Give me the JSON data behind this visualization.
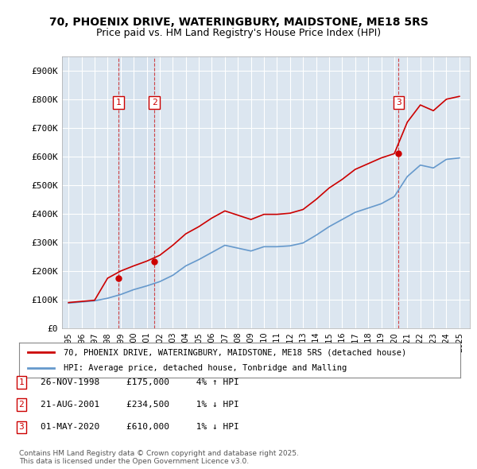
{
  "title_line1": "70, PHOENIX DRIVE, WATERINGBURY, MAIDSTONE, ME18 5RS",
  "title_line2": "Price paid vs. HM Land Registry's House Price Index (HPI)",
  "ylabel": "",
  "background_color": "#ffffff",
  "plot_bg_color": "#dce6f0",
  "grid_color": "#ffffff",
  "line1_color": "#cc0000",
  "line2_color": "#6699cc",
  "legend1": "70, PHOENIX DRIVE, WATERINGBURY, MAIDSTONE, ME18 5RS (detached house)",
  "legend2": "HPI: Average price, detached house, Tonbridge and Malling",
  "footer": "Contains HM Land Registry data © Crown copyright and database right 2025.\nThis data is licensed under the Open Government Licence v3.0.",
  "sale_dates": [
    "1998-11-26",
    "2001-08-21",
    "2020-05-01"
  ],
  "sale_prices": [
    175000,
    234500,
    610000
  ],
  "sale_labels": [
    "1",
    "2",
    "3"
  ],
  "sale_annotations": [
    "26-NOV-1998     £175,000     4% ↑ HPI",
    "21-AUG-2001     £234,500     1% ↓ HPI",
    "01-MAY-2020     £610,000     1% ↓ HPI"
  ],
  "hpi_years": [
    1995,
    1996,
    1997,
    1998,
    1999,
    2000,
    2001,
    2002,
    2003,
    2004,
    2005,
    2006,
    2007,
    2008,
    2009,
    2010,
    2011,
    2012,
    2013,
    2014,
    2015,
    2016,
    2017,
    2018,
    2019,
    2020,
    2021,
    2022,
    2023,
    2024,
    2025
  ],
  "hpi_values": [
    88000,
    92000,
    96000,
    105000,
    118000,
    135000,
    148000,
    163000,
    185000,
    218000,
    240000,
    265000,
    290000,
    280000,
    270000,
    285000,
    285000,
    288000,
    298000,
    325000,
    355000,
    380000,
    405000,
    420000,
    435000,
    460000,
    530000,
    570000,
    560000,
    590000,
    595000
  ],
  "price_years": [
    1995,
    1996,
    1997,
    1998,
    1999,
    2000,
    2001,
    2002,
    2003,
    2004,
    2005,
    2006,
    2007,
    2008,
    2009,
    2010,
    2011,
    2012,
    2013,
    2014,
    2015,
    2016,
    2017,
    2018,
    2019,
    2020,
    2021,
    2022,
    2023,
    2024,
    2025
  ],
  "price_values": [
    90000,
    94000,
    98000,
    175000,
    200000,
    218000,
    234500,
    255000,
    290000,
    330000,
    355000,
    385000,
    410000,
    395000,
    380000,
    398000,
    398000,
    402000,
    415000,
    450000,
    490000,
    520000,
    555000,
    575000,
    595000,
    610000,
    720000,
    780000,
    760000,
    800000,
    810000
  ],
  "ylim": [
    0,
    950000
  ],
  "yticks": [
    0,
    100000,
    200000,
    300000,
    400000,
    500000,
    600000,
    700000,
    800000,
    900000
  ],
  "ytick_labels": [
    "£0",
    "£100K",
    "£200K",
    "£300K",
    "£400K",
    "£500K",
    "£600K",
    "£700K",
    "£800K",
    "£900K"
  ],
  "xtick_years": [
    1995,
    1996,
    1997,
    1998,
    1999,
    2000,
    2001,
    2002,
    2003,
    2004,
    2005,
    2006,
    2007,
    2008,
    2009,
    2010,
    2011,
    2012,
    2013,
    2014,
    2015,
    2016,
    2017,
    2018,
    2019,
    2020,
    2021,
    2022,
    2023,
    2024,
    2025
  ],
  "xmin": 1994.5,
  "xmax": 2025.8
}
